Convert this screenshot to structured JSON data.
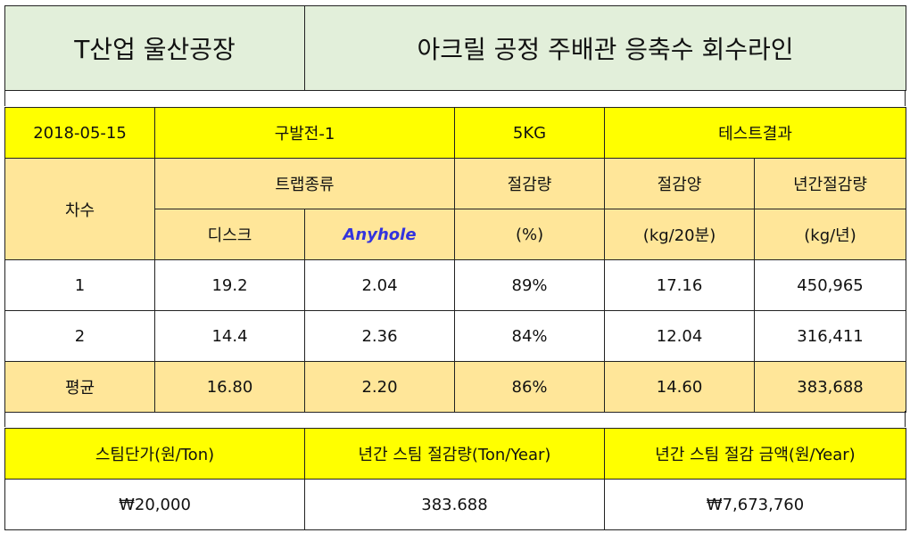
{
  "header": {
    "company": "T산업 울산공장",
    "project": "아크릴 공정 주배관 응축수 회수라인"
  },
  "info": {
    "date": "2018-05-15",
    "location": "구발전-1",
    "pressure": "5KG",
    "result": "테스트결과"
  },
  "columns": {
    "round": "차수",
    "trap_type": "트랩종류",
    "disk": "디스크",
    "anyhole": "Anyhole",
    "reduction_rate": "절감량",
    "reduction_rate_unit": "(%)",
    "reduction_amount": "절감양",
    "reduction_amount_unit": "(kg/20분)",
    "annual_reduction": "년간절감량",
    "annual_reduction_unit": "(kg/년)"
  },
  "rows": [
    {
      "round": "1",
      "disk": "19.2",
      "anyhole": "2.04",
      "rate": "89%",
      "amount": "17.16",
      "annual": "450,965"
    },
    {
      "round": "2",
      "disk": "14.4",
      "anyhole": "2.36",
      "rate": "84%",
      "amount": "12.04",
      "annual": "316,411"
    }
  ],
  "average": {
    "label": "평균",
    "disk": "16.80",
    "anyhole": "2.20",
    "rate": "86%",
    "amount": "14.60",
    "annual": "383,688"
  },
  "summary": {
    "unit_price_label": "스팀단가(원/Ton)",
    "annual_steam_label": "년간 스팀 절감량(Ton/Year)",
    "annual_amount_label": "년간 스팀 절감 금액(원/Year)",
    "unit_price": "₩20,000",
    "annual_steam": "383.688",
    "annual_amount": "₩7,673,760"
  },
  "colors": {
    "header_bg": "#e2efda",
    "highlight": "#ffff00",
    "tan": "#ffe699",
    "brand_text": "#3333dd"
  }
}
